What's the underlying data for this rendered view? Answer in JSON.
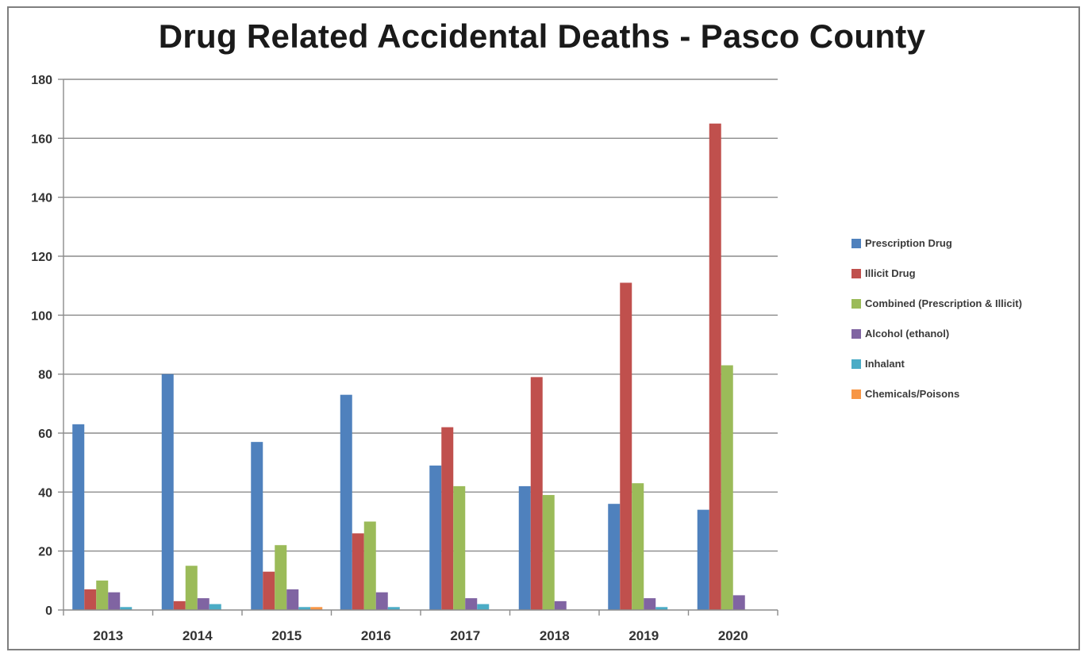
{
  "chart_data": {
    "type": "bar",
    "title": "Drug Related Accidental Deaths - Pasco County",
    "categories": [
      "2013",
      "2014",
      "2015",
      "2016",
      "2017",
      "2018",
      "2019",
      "2020"
    ],
    "ylim": [
      0,
      180
    ],
    "yticks": [
      "0",
      "20",
      "40",
      "60",
      "80",
      "100",
      "120",
      "140",
      "160",
      "180"
    ],
    "grid": true,
    "legend_position": "right",
    "series": [
      {
        "name": "Prescription Drug",
        "color": "#4f81bd",
        "values": [
          63,
          80,
          57,
          73,
          49,
          42,
          36,
          34
        ]
      },
      {
        "name": "Illicit Drug",
        "color": "#c0504d",
        "values": [
          7,
          3,
          13,
          26,
          62,
          79,
          111,
          165
        ]
      },
      {
        "name": "Combined (Prescription & Illicit)",
        "color": "#9bbb59",
        "values": [
          10,
          15,
          22,
          30,
          42,
          39,
          43,
          83
        ]
      },
      {
        "name": "Alcohol (ethanol)",
        "color": "#8064a2",
        "values": [
          6,
          4,
          7,
          6,
          4,
          3,
          4,
          5
        ]
      },
      {
        "name": "Inhalant",
        "color": "#4bacc6",
        "values": [
          1,
          2,
          1,
          1,
          2,
          0,
          1,
          0
        ]
      },
      {
        "name": "Chemicals/Poisons",
        "color": "#f79646",
        "values": [
          0,
          0,
          1,
          0,
          0,
          0,
          0,
          0
        ]
      }
    ]
  }
}
